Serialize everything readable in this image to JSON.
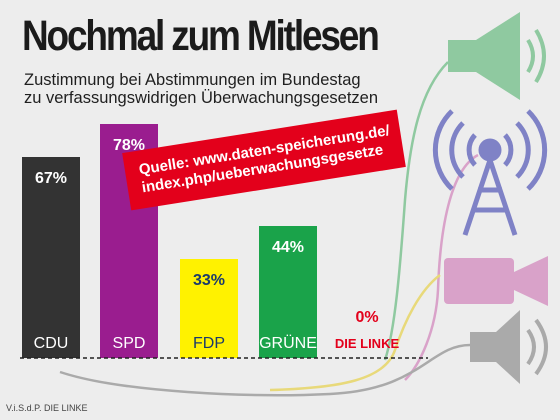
{
  "title": "Nochmal zum Mitlesen",
  "subtitle_line1": "Zustimmung bei Abstimmungen im Bundestag",
  "subtitle_line2": "zu verfassungswidrigen Überwachungsgesetzen",
  "source_line1": "Quelle: www.daten-speicherung.de/",
  "source_line2": "index.php/ueberwachungsgesetze",
  "footer": "V.i.S.d.P. DIE LINKE",
  "colors": {
    "source_background": "#e3001b",
    "bar_cdu": "#333333",
    "bar_spd": "#9a1d8f",
    "bar_fdp": "#fff200",
    "bar_gruene": "#1aa34a",
    "die_linke": "#e3001b"
  },
  "chart_data": {
    "type": "bar",
    "categories": [
      "CDU",
      "SPD",
      "FDP",
      "GRÜNE",
      "DIE LINKE"
    ],
    "values": [
      67,
      78,
      33,
      44,
      0
    ],
    "value_labels": [
      "67%",
      "78%",
      "33%",
      "44%",
      "0%"
    ],
    "ylim": [
      0,
      100
    ],
    "grid": false
  },
  "icons": [
    "loudspeaker-icon",
    "radio-tower-icon",
    "video-camera-icon",
    "speaker-icon"
  ]
}
